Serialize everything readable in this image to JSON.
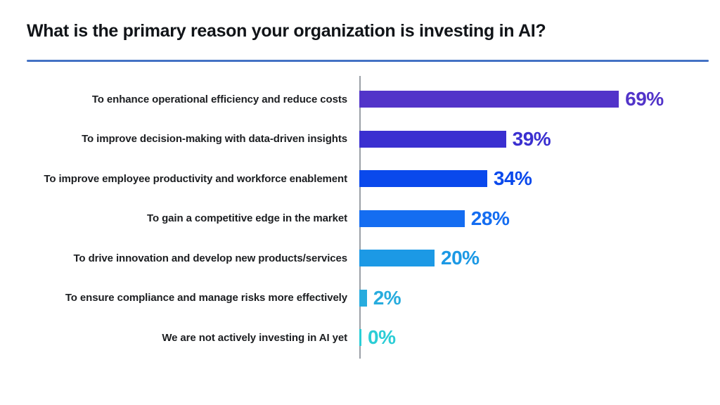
{
  "page": {
    "title": "What is the primary reason your organization is investing in AI?",
    "divider_color": "#4472C4",
    "axis_color": "#9aa0a6",
    "background_color": "#ffffff"
  },
  "chart_data": {
    "type": "bar",
    "orientation": "horizontal",
    "title": "What is the primary reason your organization is investing in AI?",
    "xlabel": "",
    "ylabel": "",
    "xlim": [
      0,
      75
    ],
    "grid": false,
    "legend": false,
    "value_suffix": "%",
    "categories": [
      "To enhance operational efficiency and reduce costs",
      "To improve decision-making with data-driven insights",
      "To improve employee productivity and workforce enablement",
      "To gain a competitive edge in the market",
      "To drive innovation and develop new products/services",
      "To ensure compliance and manage risks more effectively",
      "We are not actively investing in AI yet"
    ],
    "values": [
      69,
      39,
      34,
      28,
      20,
      2,
      0
    ],
    "value_labels": [
      "69%",
      "39%",
      "34%",
      "28%",
      "20%",
      "2%",
      "0%"
    ],
    "bar_colors": [
      "#5234C9",
      "#3A2FD0",
      "#0A49EC",
      "#146DF1",
      "#1C99E5",
      "#27ACDE",
      "#2BCDD6"
    ]
  }
}
